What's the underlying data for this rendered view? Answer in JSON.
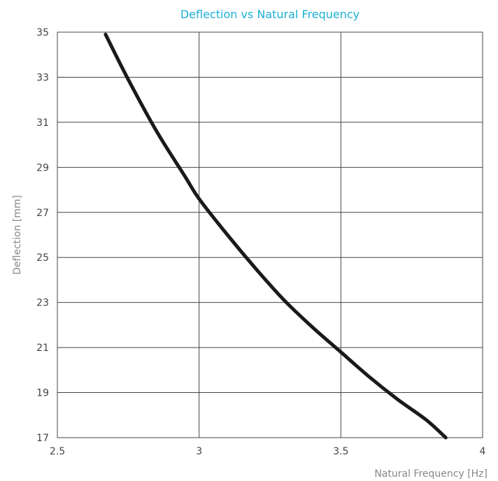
{
  "chart_data": {
    "type": "line",
    "title": "Deflection vs Natural Frequency",
    "xlabel": "Natural Frequency [Hz]",
    "ylabel": "Deflection [mm]",
    "xlim": [
      2.5,
      4
    ],
    "ylim": [
      17,
      35
    ],
    "x_ticks": [
      "2.5",
      "3",
      "3.5",
      "4"
    ],
    "y_ticks": [
      "17",
      "19",
      "21",
      "23",
      "25",
      "27",
      "29",
      "31",
      "33",
      "35"
    ],
    "grid": true,
    "series": [
      {
        "x": [
          2.67,
          2.75,
          2.85,
          2.95,
          3.0,
          3.1,
          3.2,
          3.3,
          3.4,
          3.5,
          3.6,
          3.7,
          3.8,
          3.87
        ],
        "y": [
          34.9,
          32.9,
          30.6,
          28.6,
          27.6,
          26.0,
          24.5,
          23.1,
          21.9,
          20.8,
          19.7,
          18.7,
          17.8,
          17.0
        ]
      }
    ],
    "colors": {
      "title": "#1bafd6",
      "line": "#1a1a1a",
      "grid": "#444444",
      "text": "#444444",
      "axis_label": "#888888"
    }
  }
}
